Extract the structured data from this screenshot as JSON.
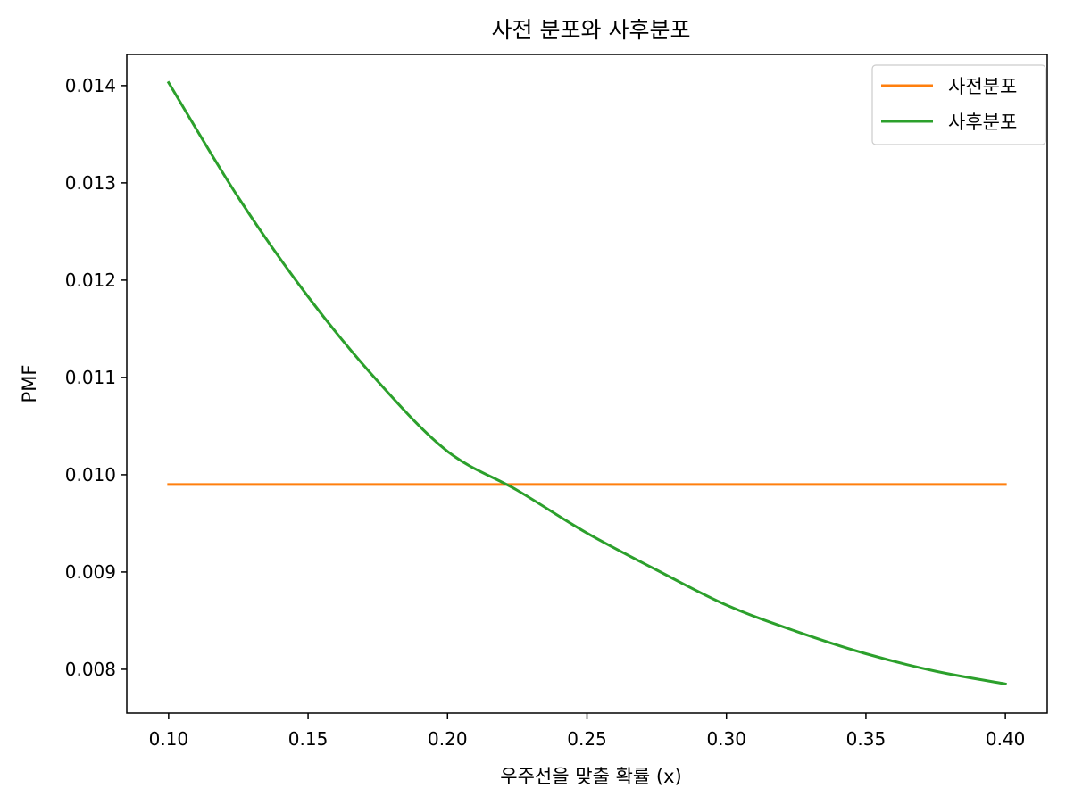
{
  "chart_data": {
    "type": "line",
    "title": "사전 분포와 사후분포",
    "xlabel": "우주선을 맞출 확률 (x)",
    "ylabel": "PMF",
    "xlim": [
      0.085,
      0.415
    ],
    "ylim": [
      0.00755,
      0.01432
    ],
    "xticks": [
      0.1,
      0.15,
      0.2,
      0.25,
      0.3,
      0.35,
      0.4
    ],
    "xtick_labels": [
      "0.10",
      "0.15",
      "0.20",
      "0.25",
      "0.30",
      "0.35",
      "0.40"
    ],
    "yticks": [
      0.008,
      0.009,
      0.01,
      0.011,
      0.012,
      0.013,
      0.014
    ],
    "ytick_labels": [
      "0.008",
      "0.009",
      "0.010",
      "0.011",
      "0.012",
      "0.013",
      "0.014"
    ],
    "grid": false,
    "legend_position": "top-right",
    "x": [
      0.1,
      0.125,
      0.15,
      0.175,
      0.2,
      0.225,
      0.25,
      0.275,
      0.3,
      0.325,
      0.35,
      0.375,
      0.4
    ],
    "series": [
      {
        "name": "사전분포",
        "color": "#ff7f0e",
        "values": [
          0.0099,
          0.0099,
          0.0099,
          0.0099,
          0.0099,
          0.0099,
          0.0099,
          0.0099,
          0.0099,
          0.0099,
          0.0099,
          0.0099,
          0.0099
        ]
      },
      {
        "name": "사후분포",
        "color": "#2ca02c",
        "values": [
          0.01403,
          0.01285,
          0.01183,
          0.01096,
          0.01024,
          0.00984,
          0.0094,
          0.00902,
          0.00866,
          0.00839,
          0.00816,
          0.00798,
          0.00785
        ]
      }
    ]
  }
}
